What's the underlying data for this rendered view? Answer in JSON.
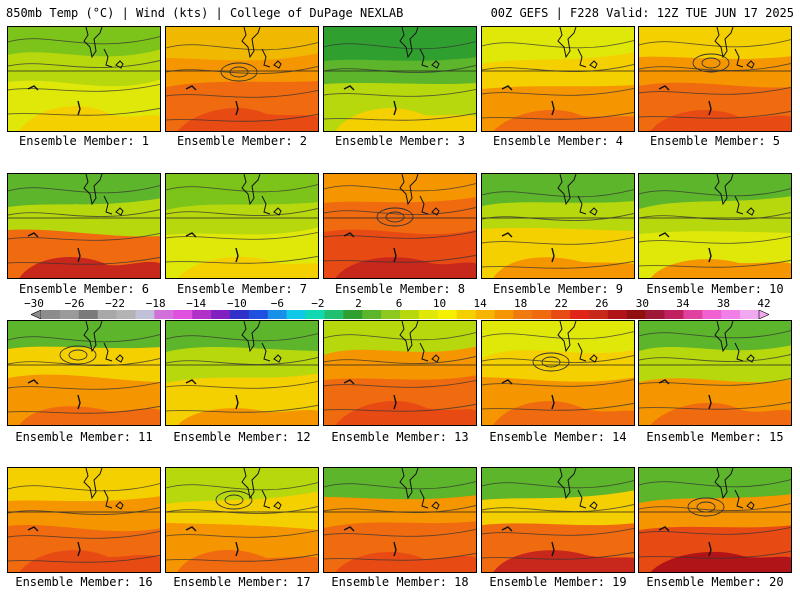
{
  "header": {
    "left": "850mb Temp (°C) | Wind (kts) | College of DuPage NEXLAB",
    "right": "00Z GEFS | F228 Valid: 12Z TUE JUN 17 2025"
  },
  "members": [
    {
      "label": "Ensemble Member: 1",
      "palette": [
        "#7cc41a",
        "#b8d80e",
        "#e0e80a",
        "#f5d000"
      ]
    },
    {
      "label": "Ensemble Member: 2",
      "palette": [
        "#f0b800",
        "#f59500",
        "#f06a10",
        "#e84a14"
      ]
    },
    {
      "label": "Ensemble Member: 3",
      "palette": [
        "#2fa02f",
        "#5cb52a",
        "#b8d80e",
        "#f5d000"
      ]
    },
    {
      "label": "Ensemble Member: 4",
      "palette": [
        "#e0e80a",
        "#f5d000",
        "#f59500",
        "#f06a10"
      ]
    },
    {
      "label": "Ensemble Member: 5",
      "palette": [
        "#f5d000",
        "#f59500",
        "#f06a10",
        "#e84a14"
      ]
    },
    {
      "label": "Ensemble Member: 6",
      "palette": [
        "#5cb52a",
        "#b8d80e",
        "#f06a10",
        "#c8281c"
      ]
    },
    {
      "label": "Ensemble Member: 7",
      "palette": [
        "#7cc41a",
        "#b8d80e",
        "#e0e80a",
        "#f5d000"
      ]
    },
    {
      "label": "Ensemble Member: 8",
      "palette": [
        "#f59500",
        "#f06a10",
        "#e84a14",
        "#c8281c"
      ]
    },
    {
      "label": "Ensemble Member: 9",
      "palette": [
        "#5cb52a",
        "#b8d80e",
        "#f5d000",
        "#f59500"
      ]
    },
    {
      "label": "Ensemble Member: 10",
      "palette": [
        "#5cb52a",
        "#b8d80e",
        "#e0e80a",
        "#f59500"
      ]
    },
    {
      "label": "Ensemble Member: 11",
      "palette": [
        "#5cb52a",
        "#f5d000",
        "#f59500",
        "#f06a10"
      ]
    },
    {
      "label": "Ensemble Member: 12",
      "palette": [
        "#5cb52a",
        "#b8d80e",
        "#f5d000",
        "#f59500"
      ]
    },
    {
      "label": "Ensemble Member: 13",
      "palette": [
        "#b8d80e",
        "#f59500",
        "#f06a10",
        "#e84a14"
      ]
    },
    {
      "label": "Ensemble Member: 14",
      "palette": [
        "#e0e80a",
        "#f5d000",
        "#f59500",
        "#f06a10"
      ]
    },
    {
      "label": "Ensemble Member: 15",
      "palette": [
        "#5cb52a",
        "#b8d80e",
        "#f59500",
        "#f06a10"
      ]
    },
    {
      "label": "Ensemble Member: 16",
      "palette": [
        "#f5d000",
        "#f59500",
        "#f06a10",
        "#e84a14"
      ]
    },
    {
      "label": "Ensemble Member: 17",
      "palette": [
        "#b8d80e",
        "#f5d000",
        "#f59500",
        "#f06a10"
      ]
    },
    {
      "label": "Ensemble Member: 18",
      "palette": [
        "#5cb52a",
        "#f59500",
        "#f06a10",
        "#e84a14"
      ]
    },
    {
      "label": "Ensemble Member: 19",
      "palette": [
        "#5cb52a",
        "#f5d000",
        "#f06a10",
        "#c8281c"
      ]
    },
    {
      "label": "Ensemble Member: 20",
      "palette": [
        "#5cb52a",
        "#f59500",
        "#e84a14",
        "#b01418"
      ]
    }
  ],
  "colorbar": {
    "ticks": [
      "−30",
      "−26",
      "−22",
      "−18",
      "−14",
      "−10",
      "−6",
      "−2",
      "2",
      "6",
      "10",
      "14",
      "18",
      "22",
      "26",
      "30",
      "34",
      "38",
      "42"
    ],
    "colors": [
      "#8c8c8c",
      "#9a9a9a",
      "#7a7a7a",
      "#a8a8a8",
      "#b4b4b4",
      "#c0c0d8",
      "#d070d8",
      "#e050e0",
      "#b030c8",
      "#8020c0",
      "#3030c8",
      "#2050e0",
      "#1890e8",
      "#10c8e8",
      "#10d8b0",
      "#20c070",
      "#2fa02f",
      "#5cb52a",
      "#8cc820",
      "#b8d80e",
      "#e0e80a",
      "#f5f000",
      "#f5d000",
      "#f5b400",
      "#f59500",
      "#f07a10",
      "#f06a10",
      "#e84a14",
      "#e02418",
      "#c8281c",
      "#b01418",
      "#901010",
      "#a01838",
      "#c02060",
      "#e040a0",
      "#f060d0",
      "#f080e8",
      "#f0a8f0"
    ]
  }
}
